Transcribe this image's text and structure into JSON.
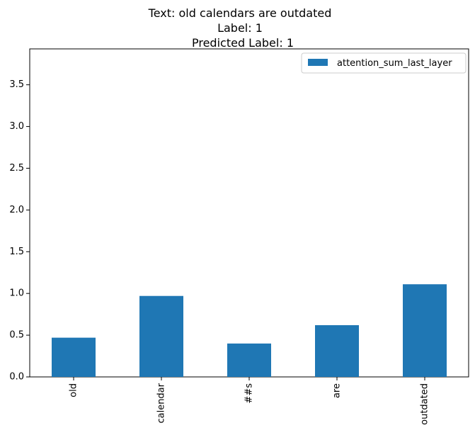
{
  "chart_data": {
    "type": "bar",
    "title_lines": [
      "Text: old calendars are outdated",
      "Label: 1",
      "Predicted Label: 1"
    ],
    "categories": [
      "old",
      "calendar",
      "##s",
      "are",
      "outdated"
    ],
    "series": [
      {
        "name": "attention_sum_last_layer",
        "values": [
          0.47,
          0.97,
          0.4,
          0.62,
          1.11
        ],
        "color": "#1f77b4"
      }
    ],
    "xlabel": "",
    "ylabel": "",
    "ylim": [
      0,
      3.93
    ],
    "yticks": [
      "0.0",
      "0.5",
      "1.0",
      "1.5",
      "2.0",
      "2.5",
      "3.0",
      "3.5"
    ],
    "grid": false,
    "legend_position": "top-right"
  }
}
